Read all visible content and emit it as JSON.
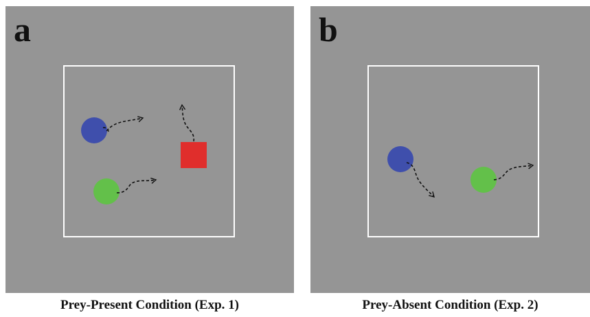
{
  "panels": [
    {
      "letter": "a",
      "caption": "Prey-Present Condition (Exp. 1)",
      "agents": [
        {
          "id": "blue-circle",
          "shape": "circle",
          "color": "#3f4fac"
        },
        {
          "id": "green-circle",
          "shape": "circle",
          "color": "#63c04a"
        },
        {
          "id": "red-square",
          "shape": "square",
          "color": "#e02e2c"
        }
      ]
    },
    {
      "letter": "b",
      "caption": "Prey-Absent Condition (Exp. 2)",
      "agents": [
        {
          "id": "blue-circle",
          "shape": "circle",
          "color": "#3f4fac"
        },
        {
          "id": "green-circle",
          "shape": "circle",
          "color": "#63c04a"
        }
      ]
    }
  ],
  "colors": {
    "panel_background": "#959595",
    "arena_border": "#ffffff",
    "trajectory_arrow": "#111111"
  }
}
